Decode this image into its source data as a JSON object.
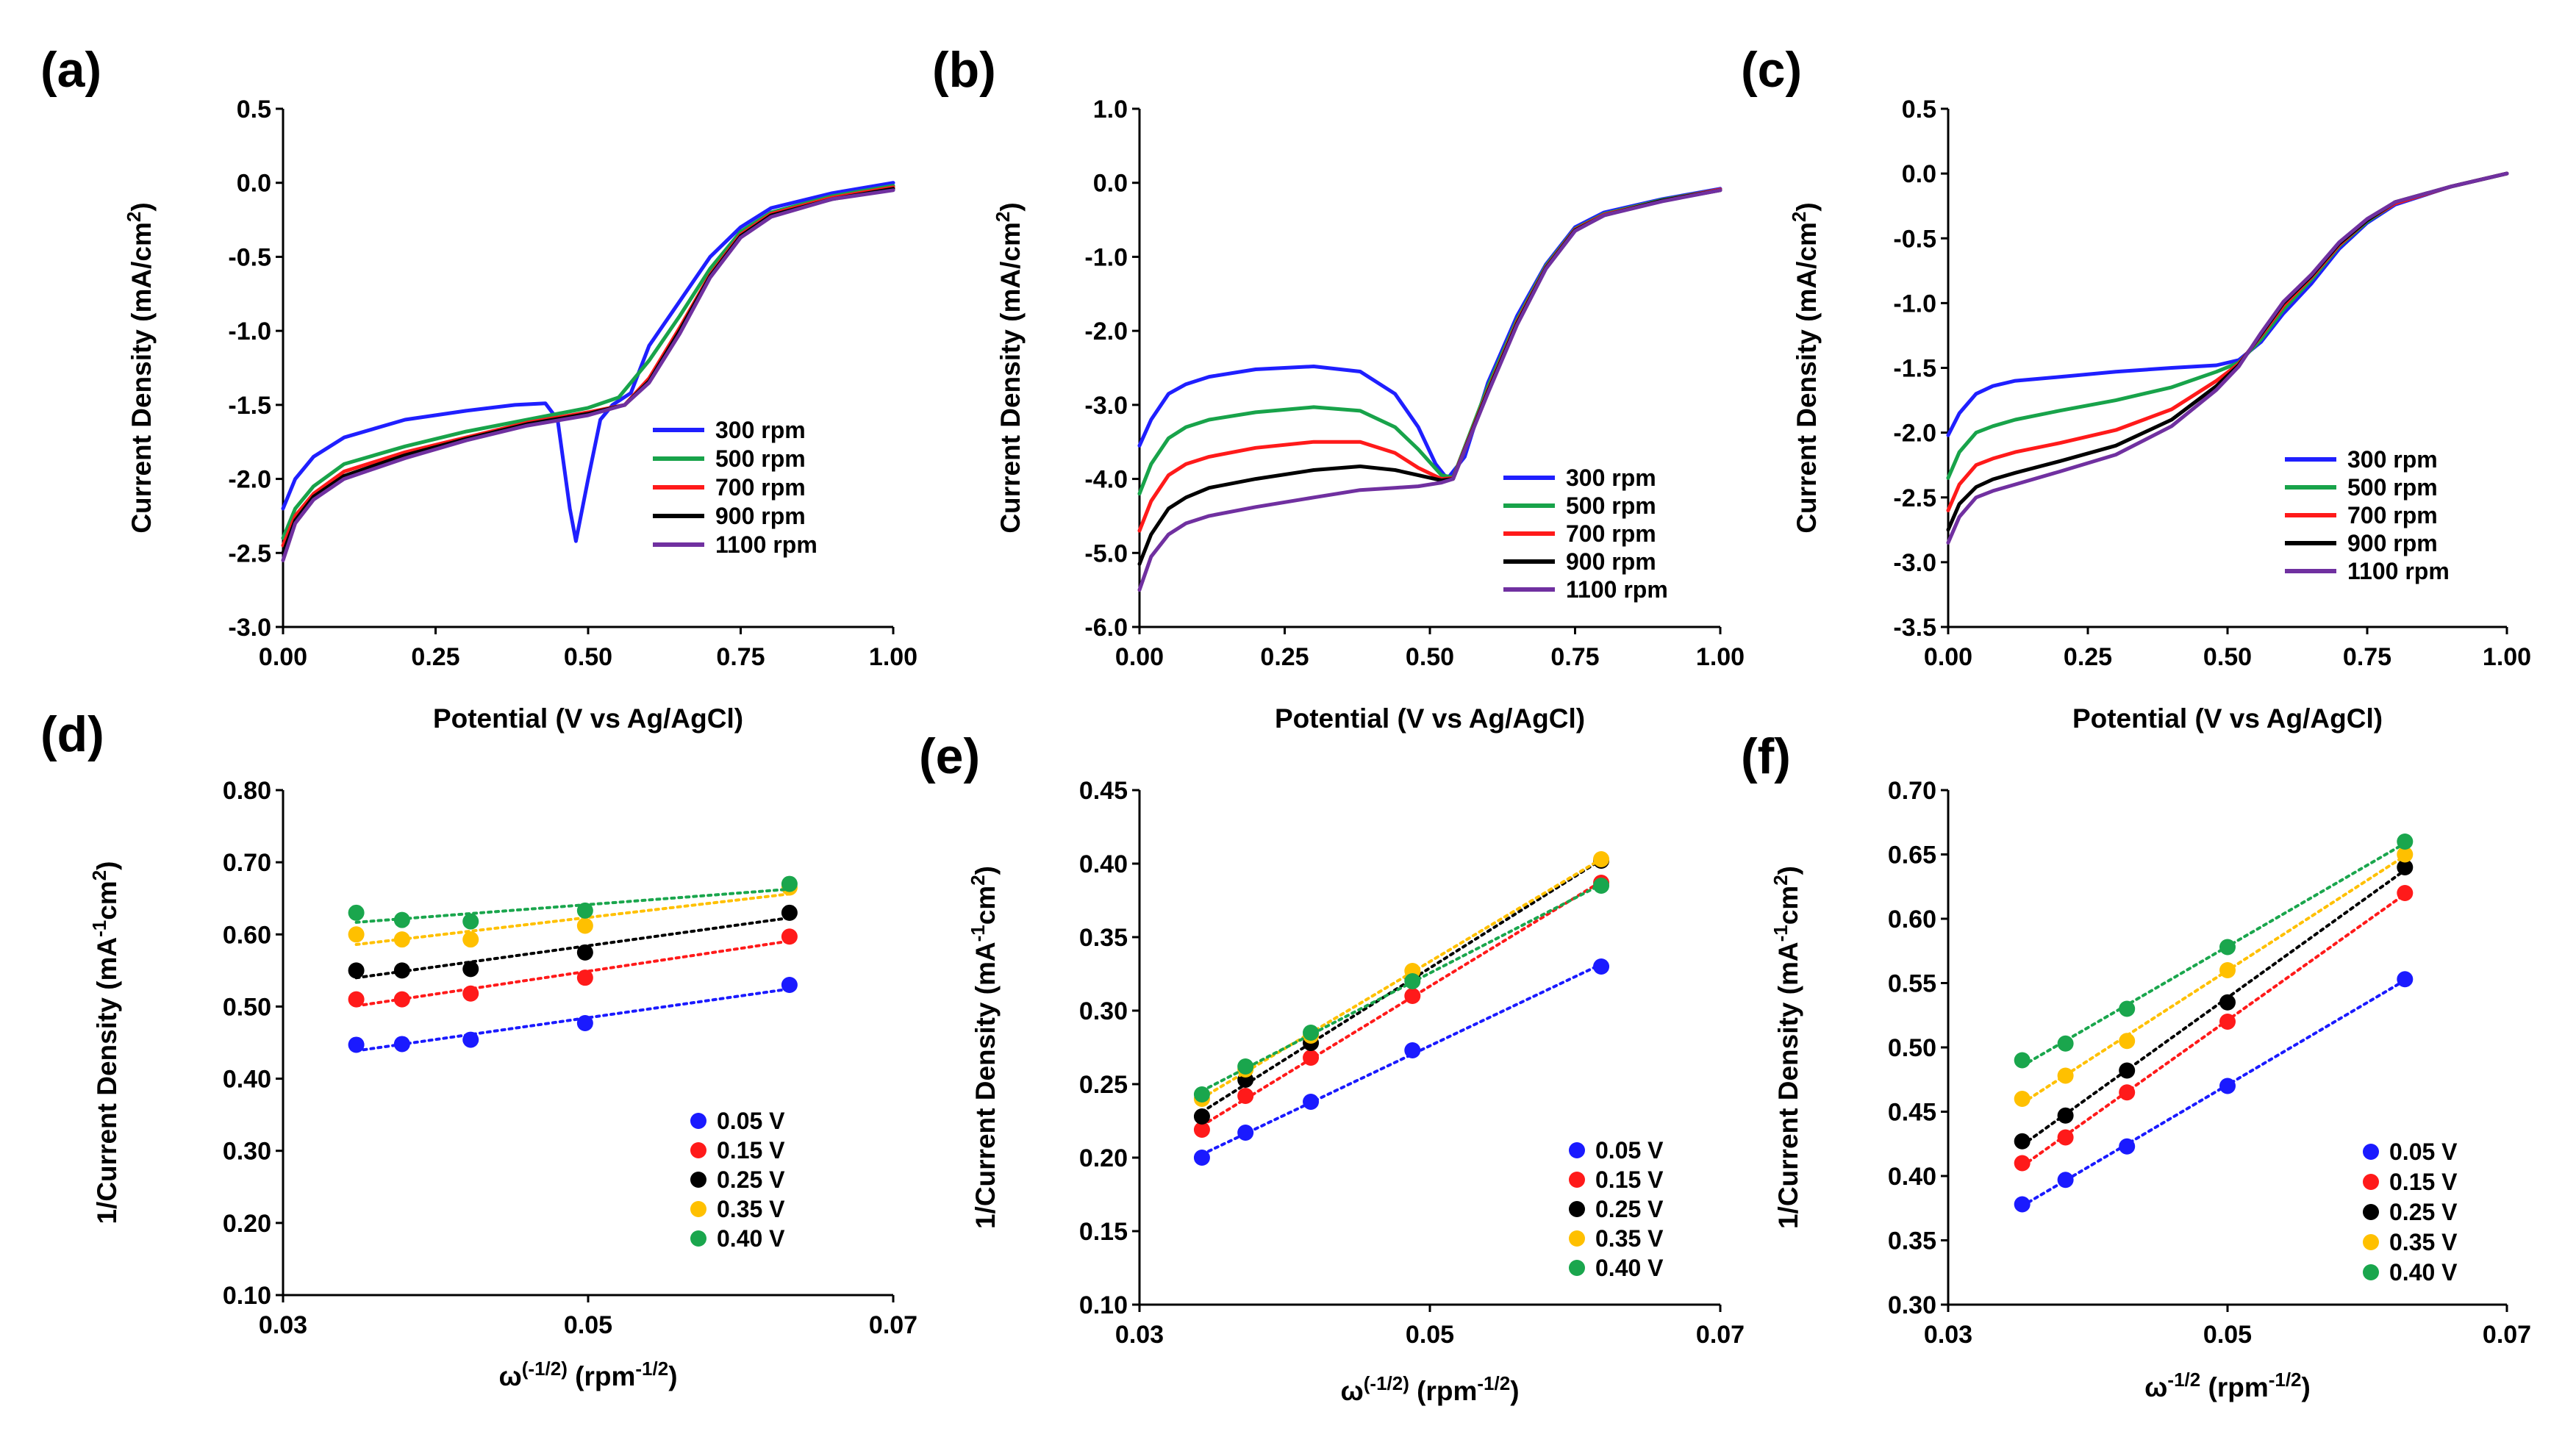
{
  "chart_data": [
    {
      "panel": "(a)",
      "type": "line",
      "xlabel": "Potential (V vs Ag/AgCl)",
      "ylabel": "Current Density (mA/cm²)",
      "xlim": [
        0,
        1
      ],
      "ylim": [
        -3.0,
        0.5
      ],
      "xticks": [
        "0.00",
        "0.25",
        "0.50",
        "0.75",
        "1.00"
      ],
      "yticks": [
        "0.5",
        "0.0",
        "-0.5",
        "-1.0",
        "-1.5",
        "-2.0",
        "-2.5",
        "-3.0"
      ],
      "legend_position": "lower-right",
      "series": [
        {
          "name": "300 rpm",
          "color": "#1f1fff",
          "x": [
            0,
            0.02,
            0.05,
            0.1,
            0.2,
            0.3,
            0.38,
            0.43,
            0.45,
            0.47,
            0.48,
            0.5,
            0.52,
            0.54,
            0.57,
            0.6,
            0.65,
            0.7,
            0.75,
            0.8,
            0.9,
            1.0
          ],
          "y": [
            -2.2,
            -2.0,
            -1.85,
            -1.72,
            -1.6,
            -1.54,
            -1.5,
            -1.49,
            -1.6,
            -2.2,
            -2.42,
            -2.0,
            -1.6,
            -1.5,
            -1.42,
            -1.1,
            -0.8,
            -0.5,
            -0.3,
            -0.17,
            -0.07,
            0.0
          ]
        },
        {
          "name": "500 rpm",
          "color": "#18a34a",
          "x": [
            0,
            0.02,
            0.05,
            0.1,
            0.2,
            0.3,
            0.4,
            0.5,
            0.55,
            0.6,
            0.65,
            0.7,
            0.75,
            0.8,
            0.9,
            1.0
          ],
          "y": [
            -2.4,
            -2.2,
            -2.05,
            -1.9,
            -1.78,
            -1.68,
            -1.6,
            -1.52,
            -1.45,
            -1.2,
            -0.9,
            -0.58,
            -0.33,
            -0.2,
            -0.09,
            -0.02
          ]
        },
        {
          "name": "700 rpm",
          "color": "#ff1a1a",
          "x": [
            0,
            0.02,
            0.05,
            0.1,
            0.2,
            0.3,
            0.4,
            0.5,
            0.56,
            0.6,
            0.65,
            0.7,
            0.75,
            0.8,
            0.9,
            1.0
          ],
          "y": [
            -2.45,
            -2.25,
            -2.1,
            -1.95,
            -1.82,
            -1.72,
            -1.62,
            -1.55,
            -1.5,
            -1.32,
            -0.98,
            -0.62,
            -0.35,
            -0.21,
            -0.1,
            -0.03
          ]
        },
        {
          "name": "900 rpm",
          "color": "#000000",
          "x": [
            0,
            0.02,
            0.05,
            0.1,
            0.2,
            0.3,
            0.4,
            0.5,
            0.56,
            0.6,
            0.65,
            0.7,
            0.75,
            0.8,
            0.9,
            1.0
          ],
          "y": [
            -2.5,
            -2.28,
            -2.12,
            -1.98,
            -1.84,
            -1.73,
            -1.63,
            -1.56,
            -1.5,
            -1.34,
            -1.0,
            -0.63,
            -0.36,
            -0.22,
            -0.11,
            -0.04
          ]
        },
        {
          "name": "1100 rpm",
          "color": "#7030a0",
          "x": [
            0,
            0.02,
            0.05,
            0.1,
            0.2,
            0.3,
            0.4,
            0.5,
            0.56,
            0.6,
            0.65,
            0.7,
            0.75,
            0.8,
            0.9,
            1.0
          ],
          "y": [
            -2.55,
            -2.3,
            -2.14,
            -2.0,
            -1.86,
            -1.74,
            -1.64,
            -1.57,
            -1.5,
            -1.35,
            -1.02,
            -0.64,
            -0.37,
            -0.23,
            -0.11,
            -0.05
          ]
        }
      ]
    },
    {
      "panel": "(b)",
      "type": "line",
      "xlabel": "Potential (V vs Ag/AgCl)",
      "ylabel": "Current Density (mA/cm²)",
      "xlim": [
        0,
        1
      ],
      "ylim": [
        -6.0,
        1.0
      ],
      "xticks": [
        "0.00",
        "0.25",
        "0.50",
        "0.75",
        "1.00"
      ],
      "yticks": [
        "1.0",
        "0.0",
        "-1.0",
        "-2.0",
        "-3.0",
        "-4.0",
        "-5.0",
        "-6.0"
      ],
      "legend_position": "lower-right",
      "series": [
        {
          "name": "300 rpm",
          "color": "#1f1fff",
          "x": [
            0,
            0.02,
            0.05,
            0.08,
            0.12,
            0.2,
            0.3,
            0.38,
            0.44,
            0.48,
            0.51,
            0.53,
            0.56,
            0.6,
            0.65,
            0.7,
            0.75,
            0.8,
            0.9,
            1.0
          ],
          "y": [
            -3.55,
            -3.2,
            -2.85,
            -2.72,
            -2.62,
            -2.52,
            -2.48,
            -2.55,
            -2.85,
            -3.3,
            -3.8,
            -4.0,
            -3.7,
            -2.7,
            -1.8,
            -1.1,
            -0.6,
            -0.4,
            -0.22,
            -0.08
          ]
        },
        {
          "name": "500 rpm",
          "color": "#18a34a",
          "x": [
            0,
            0.02,
            0.05,
            0.08,
            0.12,
            0.2,
            0.3,
            0.38,
            0.44,
            0.48,
            0.52,
            0.54,
            0.6,
            0.65,
            0.7,
            0.75,
            0.8,
            0.9,
            1.0
          ],
          "y": [
            -4.2,
            -3.8,
            -3.45,
            -3.3,
            -3.2,
            -3.1,
            -3.03,
            -3.08,
            -3.3,
            -3.6,
            -3.95,
            -3.98,
            -2.75,
            -1.85,
            -1.12,
            -0.62,
            -0.42,
            -0.23,
            -0.09
          ]
        },
        {
          "name": "700 rpm",
          "color": "#ff1a1a",
          "x": [
            0,
            0.02,
            0.05,
            0.08,
            0.12,
            0.2,
            0.3,
            0.38,
            0.44,
            0.48,
            0.52,
            0.54,
            0.6,
            0.65,
            0.7,
            0.75,
            0.8,
            0.9,
            1.0
          ],
          "y": [
            -4.7,
            -4.3,
            -3.95,
            -3.8,
            -3.7,
            -3.58,
            -3.5,
            -3.5,
            -3.65,
            -3.85,
            -4.0,
            -3.99,
            -2.8,
            -1.88,
            -1.14,
            -0.63,
            -0.43,
            -0.24,
            -0.09
          ]
        },
        {
          "name": "900 rpm",
          "color": "#000000",
          "x": [
            0,
            0.02,
            0.05,
            0.08,
            0.12,
            0.2,
            0.3,
            0.38,
            0.44,
            0.48,
            0.52,
            0.54,
            0.6,
            0.65,
            0.7,
            0.75,
            0.8,
            0.9,
            1.0
          ],
          "y": [
            -5.15,
            -4.75,
            -4.4,
            -4.25,
            -4.12,
            -4.0,
            -3.88,
            -3.83,
            -3.88,
            -3.95,
            -4.02,
            -4.0,
            -2.82,
            -1.9,
            -1.15,
            -0.64,
            -0.44,
            -0.24,
            -0.1
          ]
        },
        {
          "name": "1100 rpm",
          "color": "#7030a0",
          "x": [
            0,
            0.02,
            0.05,
            0.08,
            0.12,
            0.2,
            0.3,
            0.38,
            0.44,
            0.48,
            0.52,
            0.54,
            0.6,
            0.65,
            0.7,
            0.75,
            0.8,
            0.9,
            1.0
          ],
          "y": [
            -5.5,
            -5.05,
            -4.75,
            -4.6,
            -4.5,
            -4.38,
            -4.25,
            -4.15,
            -4.12,
            -4.1,
            -4.05,
            -4.0,
            -2.84,
            -1.92,
            -1.16,
            -0.65,
            -0.44,
            -0.25,
            -0.1
          ]
        }
      ]
    },
    {
      "panel": "(c)",
      "type": "line",
      "xlabel": "Potential (V vs Ag/AgCl)",
      "ylabel": "Current Density (mA/cm²)",
      "xlim": [
        0,
        1
      ],
      "ylim": [
        -3.5,
        0.5
      ],
      "xticks": [
        "0.00",
        "0.25",
        "0.50",
        "0.75",
        "1.00"
      ],
      "yticks": [
        "0.5",
        "0.0",
        "-0.5",
        "-1.0",
        "-1.5",
        "-2.0",
        "-2.5",
        "-3.0",
        "-3.5"
      ],
      "legend_position": "lower-right",
      "series": [
        {
          "name": "300 rpm",
          "color": "#1f1fff",
          "x": [
            0,
            0.02,
            0.05,
            0.08,
            0.12,
            0.2,
            0.3,
            0.4,
            0.48,
            0.52,
            0.56,
            0.6,
            0.65,
            0.7,
            0.75,
            0.8,
            0.9,
            1.0
          ],
          "y": [
            -2.02,
            -1.85,
            -1.7,
            -1.64,
            -1.6,
            -1.57,
            -1.53,
            -1.5,
            -1.48,
            -1.44,
            -1.3,
            -1.08,
            -0.85,
            -0.58,
            -0.38,
            -0.24,
            -0.1,
            0.0
          ]
        },
        {
          "name": "500 rpm",
          "color": "#18a34a",
          "x": [
            0,
            0.02,
            0.05,
            0.08,
            0.12,
            0.2,
            0.3,
            0.4,
            0.48,
            0.52,
            0.56,
            0.6,
            0.65,
            0.7,
            0.75,
            0.8,
            0.9,
            1.0
          ],
          "y": [
            -2.35,
            -2.15,
            -2.0,
            -1.95,
            -1.9,
            -1.83,
            -1.75,
            -1.65,
            -1.53,
            -1.46,
            -1.28,
            -1.05,
            -0.82,
            -0.56,
            -0.37,
            -0.23,
            -0.1,
            0.0
          ]
        },
        {
          "name": "700 rpm",
          "color": "#ff1a1a",
          "x": [
            0,
            0.02,
            0.05,
            0.08,
            0.12,
            0.2,
            0.3,
            0.4,
            0.48,
            0.52,
            0.56,
            0.6,
            0.65,
            0.7,
            0.75,
            0.8,
            0.9,
            1.0
          ],
          "y": [
            -2.6,
            -2.4,
            -2.25,
            -2.2,
            -2.15,
            -2.08,
            -1.98,
            -1.82,
            -1.6,
            -1.47,
            -1.25,
            -1.02,
            -0.8,
            -0.55,
            -0.36,
            -0.23,
            -0.1,
            0.0
          ]
        },
        {
          "name": "900 rpm",
          "color": "#000000",
          "x": [
            0,
            0.02,
            0.05,
            0.08,
            0.12,
            0.2,
            0.3,
            0.4,
            0.48,
            0.52,
            0.56,
            0.6,
            0.65,
            0.7,
            0.75,
            0.8,
            0.9,
            1.0
          ],
          "y": [
            -2.75,
            -2.55,
            -2.42,
            -2.36,
            -2.31,
            -2.22,
            -2.1,
            -1.9,
            -1.64,
            -1.48,
            -1.24,
            -1.0,
            -0.79,
            -0.54,
            -0.36,
            -0.22,
            -0.1,
            0.0
          ]
        },
        {
          "name": "1100 rpm",
          "color": "#7030a0",
          "x": [
            0,
            0.02,
            0.05,
            0.08,
            0.12,
            0.2,
            0.3,
            0.4,
            0.48,
            0.52,
            0.56,
            0.6,
            0.65,
            0.7,
            0.75,
            0.8,
            0.9,
            1.0
          ],
          "y": [
            -2.85,
            -2.65,
            -2.5,
            -2.45,
            -2.4,
            -2.3,
            -2.17,
            -1.95,
            -1.67,
            -1.49,
            -1.23,
            -0.99,
            -0.78,
            -0.53,
            -0.35,
            -0.22,
            -0.1,
            0.0
          ]
        }
      ]
    },
    {
      "panel": "(d)",
      "type": "scatter",
      "xlabel": "ω(-1/2) (rpm-1/2)",
      "ylabel": "1/Current Density (mA-1cm2)",
      "xlim": [
        0.03,
        0.07
      ],
      "ylim": [
        0.1,
        0.8
      ],
      "xticks": [
        "0.03",
        "0.05",
        "0.07"
      ],
      "yticks": [
        "0.80",
        "0.70",
        "0.60",
        "0.50",
        "0.40",
        "0.30",
        "0.20",
        "0.10"
      ],
      "legend_position": "lower-right",
      "x": [
        0.0348,
        0.0378,
        0.0423,
        0.0498,
        0.0632
      ],
      "series": [
        {
          "name": "0.05 V",
          "color": "#1a1aff",
          "values": [
            0.447,
            0.448,
            0.454,
            0.477,
            0.53
          ]
        },
        {
          "name": "0.15 V",
          "color": "#ff1a1a",
          "values": [
            0.51,
            0.51,
            0.518,
            0.54,
            0.597
          ]
        },
        {
          "name": "0.25 V",
          "color": "#000000",
          "values": [
            0.55,
            0.55,
            0.552,
            0.575,
            0.63
          ]
        },
        {
          "name": "0.35 V",
          "color": "#ffc000",
          "values": [
            0.6,
            0.593,
            0.593,
            0.612,
            0.665
          ]
        },
        {
          "name": "0.40 V",
          "color": "#1aa64d",
          "values": [
            0.63,
            0.62,
            0.618,
            0.633,
            0.67
          ]
        }
      ]
    },
    {
      "panel": "(e)",
      "type": "scatter",
      "xlabel": "ω(-1/2) (rpm-1/2)",
      "ylabel": "1/Current Density (mA-1cm2)",
      "xlim": [
        0.03,
        0.07
      ],
      "ylim": [
        0.1,
        0.45
      ],
      "xticks": [
        "0.03",
        "0.05",
        "0.07"
      ],
      "yticks": [
        "0.45",
        "0.40",
        "0.35",
        "0.30",
        "0.25",
        "0.20",
        "0.15",
        "0.10"
      ],
      "legend_position": "lower-right",
      "x": [
        0.0343,
        0.0373,
        0.0418,
        0.0488,
        0.0618
      ],
      "series": [
        {
          "name": "0.05 V",
          "color": "#1a1aff",
          "values": [
            0.2,
            0.217,
            0.238,
            0.273,
            0.33
          ]
        },
        {
          "name": "0.15 V",
          "color": "#ff1a1a",
          "values": [
            0.219,
            0.242,
            0.268,
            0.31,
            0.387
          ]
        },
        {
          "name": "0.25 V",
          "color": "#000000",
          "values": [
            0.228,
            0.253,
            0.278,
            0.322,
            0.402
          ]
        },
        {
          "name": "0.35 V",
          "color": "#ffc000",
          "values": [
            0.24,
            0.26,
            0.283,
            0.327,
            0.403
          ]
        },
        {
          "name": "0.40 V",
          "color": "#1aa64d",
          "values": [
            0.243,
            0.262,
            0.285,
            0.32,
            0.385
          ]
        }
      ]
    },
    {
      "panel": "(f)",
      "type": "scatter",
      "xlabel": "ω-1/2 (rpm-1/2)",
      "ylabel": "1/Current Density (mA-1cm2)",
      "xlim": [
        0.03,
        0.07
      ],
      "ylim": [
        0.3,
        0.7
      ],
      "xticks": [
        "0.03",
        "0.05",
        "0.07"
      ],
      "yticks": [
        "0.70",
        "0.65",
        "0.60",
        "0.55",
        "0.50",
        "0.45",
        "0.40",
        "0.35",
        "0.30"
      ],
      "legend_position": "lower-right",
      "x": [
        0.0353,
        0.0384,
        0.0428,
        0.05,
        0.0627
      ],
      "series": [
        {
          "name": "0.05 V",
          "color": "#1a1aff",
          "values": [
            0.378,
            0.397,
            0.423,
            0.47,
            0.553
          ]
        },
        {
          "name": "0.15 V",
          "color": "#ff1a1a",
          "values": [
            0.41,
            0.43,
            0.465,
            0.52,
            0.62
          ]
        },
        {
          "name": "0.25 V",
          "color": "#000000",
          "values": [
            0.427,
            0.447,
            0.482,
            0.535,
            0.64
          ]
        },
        {
          "name": "0.35 V",
          "color": "#ffc000",
          "values": [
            0.46,
            0.478,
            0.505,
            0.56,
            0.65
          ]
        },
        {
          "name": "0.40 V",
          "color": "#1aa64d",
          "values": [
            0.49,
            0.503,
            0.53,
            0.578,
            0.66
          ]
        }
      ]
    }
  ]
}
